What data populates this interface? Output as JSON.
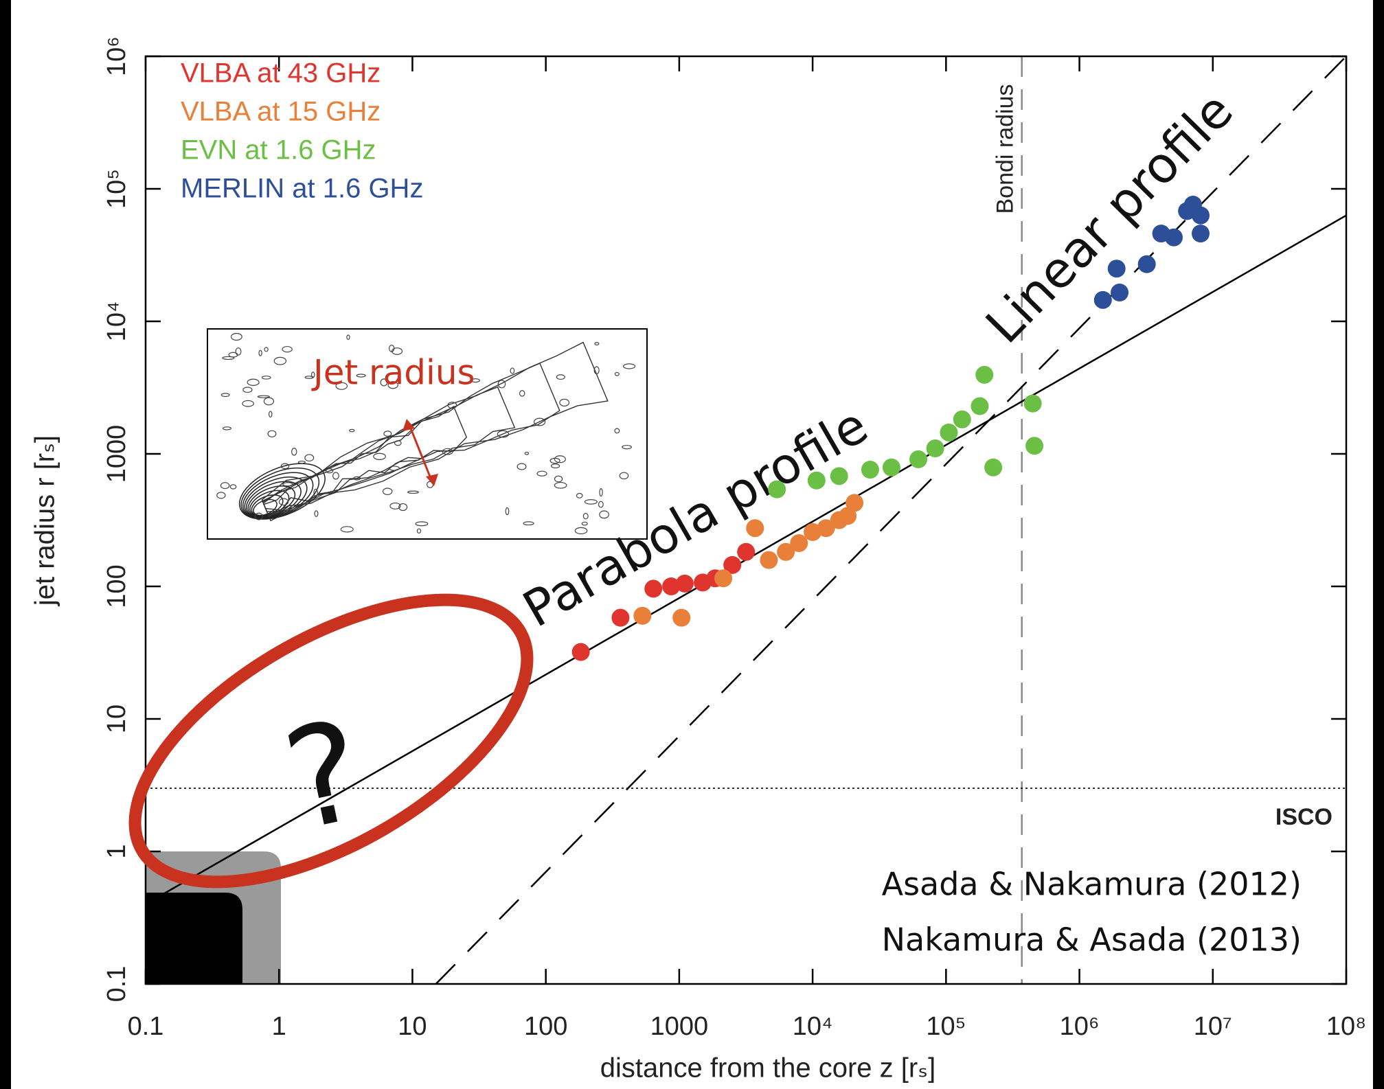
{
  "chart_data": {
    "type": "scatter",
    "xlabel": "distance from the core z [rₛ]",
    "ylabel": "jet radius r [rₛ]",
    "log_x": true,
    "log_y": true,
    "grid": false,
    "legend": "upper left",
    "xlim": [
      0.1,
      100000000
    ],
    "ylim": [
      0.1,
      1000000
    ],
    "xticks": [
      0.1,
      1,
      10,
      100,
      1000,
      {
        "value": 10000,
        "label": "10⁴"
      },
      {
        "value": 100000,
        "label": "10⁵"
      },
      {
        "value": 1000000,
        "label": "10⁶"
      },
      {
        "value": 10000000,
        "label": "10⁷"
      },
      {
        "value": 100000000,
        "label": "10⁸"
      }
    ],
    "yticks": [
      0.1,
      1,
      10,
      100,
      1000,
      {
        "value": 10000,
        "label": "10⁴"
      },
      {
        "value": 100000,
        "label": "10⁵"
      },
      {
        "value": 1000000,
        "label": "10⁶"
      }
    ],
    "series": [
      {
        "name": "VLBA at 43 GHz",
        "color": "#e0342f",
        "x": [
          183,
          363,
          640,
          870,
          1100,
          1500,
          1860,
          2500,
          3170
        ],
        "values": [
          32,
          58,
          96,
          100,
          105,
          107,
          115,
          145,
          182
        ]
      },
      {
        "name": "VLBA at 15 GHz",
        "color": "#e8803a",
        "x": [
          530,
          1040,
          2140,
          3700,
          4700,
          6300,
          7900,
          10000,
          12600,
          15800,
          18300,
          20600
        ],
        "values": [
          60,
          58,
          115,
          275,
          158,
          182,
          212,
          257,
          275,
          316,
          340,
          427
        ]
      },
      {
        "name": "EVN at 1.6 GHz",
        "color": "#6cbf45",
        "x": [
          5400,
          10700,
          15800,
          27000,
          39000,
          62000,
          83000,
          105000,
          132000,
          179000,
          194000,
          226000,
          447000,
          460000
        ],
        "values": [
          540,
          630,
          680,
          760,
          790,
          910,
          1100,
          1450,
          1820,
          2290,
          3950,
          790,
          2400,
          1150
        ]
      },
      {
        "name": "MERLIN at 1.6 GHz",
        "color": "#2d4f9a",
        "x": [
          1500000,
          1900000,
          2000000,
          3200000,
          4100000,
          5100000,
          6400000,
          7100000,
          8100000,
          8100000
        ],
        "values": [
          14500,
          25000,
          16500,
          27000,
          46000,
          43000,
          68000,
          76000,
          63000,
          46000
        ]
      }
    ],
    "lines": [
      {
        "label": "Parabola profile",
        "style": "solid",
        "x": [
          0.1,
          100000000
        ],
        "values": [
          0.4,
          63000
        ]
      },
      {
        "label": "Linear profile",
        "style": "dashed",
        "x": [
          15,
          100000000
        ],
        "values": [
          0.1,
          1000000
        ]
      }
    ],
    "vlines": [
      {
        "value": 370000,
        "label": "Bondi radius"
      }
    ],
    "hlines": [
      {
        "value": 3,
        "label": "ISCO"
      }
    ],
    "annotations": {
      "question": "?",
      "inset": "Jet radius",
      "references": [
        "Asada & Nakamura (2012)",
        "Nakamura & Asada (2013)"
      ]
    }
  }
}
